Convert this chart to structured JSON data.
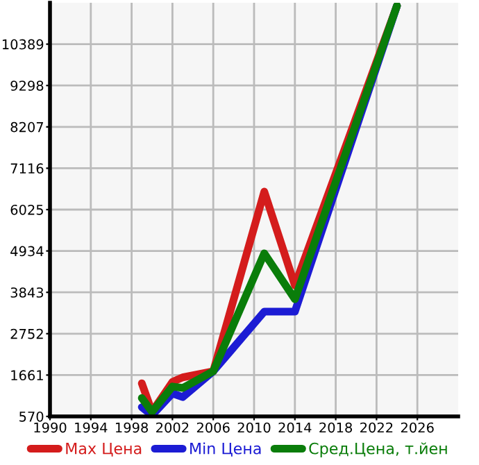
{
  "chart_data": {
    "type": "line",
    "series": [
      {
        "name": "Max Цена",
        "color": "#d41c1c",
        "x": [
          1999,
          2000,
          2002,
          2003,
          2006,
          2011,
          2014,
          2024
        ],
        "values": [
          1443,
          690,
          1480,
          1600,
          1760,
          6498,
          4025,
          11400
        ]
      },
      {
        "name": "Min Цена",
        "color": "#1c1cd4",
        "x": [
          1999,
          2000,
          2002,
          2003,
          2006,
          2011,
          2014,
          2024
        ],
        "values": [
          814,
          600,
          1180,
          1080,
          1760,
          3334,
          3334,
          11400
        ]
      },
      {
        "name": "Сред.Цена, т.йен",
        "color": "#0a7d0a",
        "x": [
          1999,
          2000,
          2002,
          2003,
          2006,
          2011,
          2014,
          2024
        ],
        "values": [
          1054,
          690,
          1359,
          1320,
          1760,
          4872,
          3661,
          11400
        ]
      }
    ],
    "xlim": [
      1990,
      2030
    ],
    "xticks": [
      1990,
      1994,
      1998,
      2002,
      2006,
      2010,
      2014,
      2018,
      2022,
      2026
    ],
    "ylim": [
      570,
      11480
    ],
    "yticks": [
      570,
      1661,
      2752,
      3843,
      4934,
      6025,
      7116,
      8207,
      9298,
      10389
    ],
    "grid": true,
    "legend": "bottom",
    "marker": "none",
    "line_style": "solid"
  }
}
